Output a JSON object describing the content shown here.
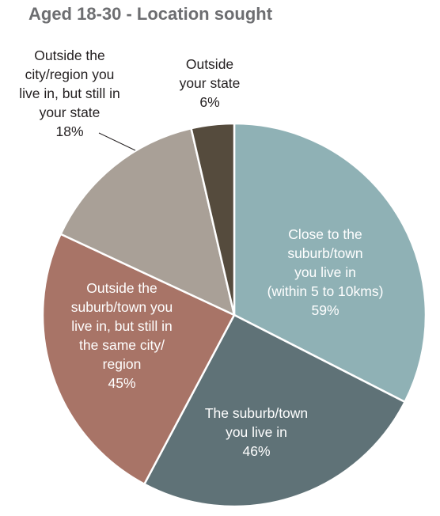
{
  "chart_data": {
    "type": "pie",
    "title": "Aged 18-30 - Location sought",
    "slices": [
      {
        "label_lines": [
          "Close to the",
          "suburb/town",
          "you live in",
          "(within 5 to 10kms)",
          "59%"
        ],
        "value": 59,
        "color": "#8fb1b5",
        "label_color": "#ffffff"
      },
      {
        "label_lines": [
          "The suburb/town",
          "you live in",
          "46%"
        ],
        "value": 46,
        "color": "#5f7277",
        "label_color": "#ffffff"
      },
      {
        "label_lines": [
          "Outside the",
          "suburb/town you",
          "live in, but still in",
          "the same city/",
          "region",
          "45%"
        ],
        "value": 45,
        "color": "#a87467",
        "label_color": "#ffffff"
      },
      {
        "label_lines": [
          "Outside the",
          "city/region you",
          "live in, but still in",
          "your state",
          "18%"
        ],
        "value": 18,
        "color": "#a9a097",
        "label_color": "#231f20"
      },
      {
        "label_lines": [
          "Outside",
          "your state",
          "6%"
        ],
        "value": 6,
        "color": "#554b3d",
        "label_color": "#231f20"
      }
    ]
  }
}
